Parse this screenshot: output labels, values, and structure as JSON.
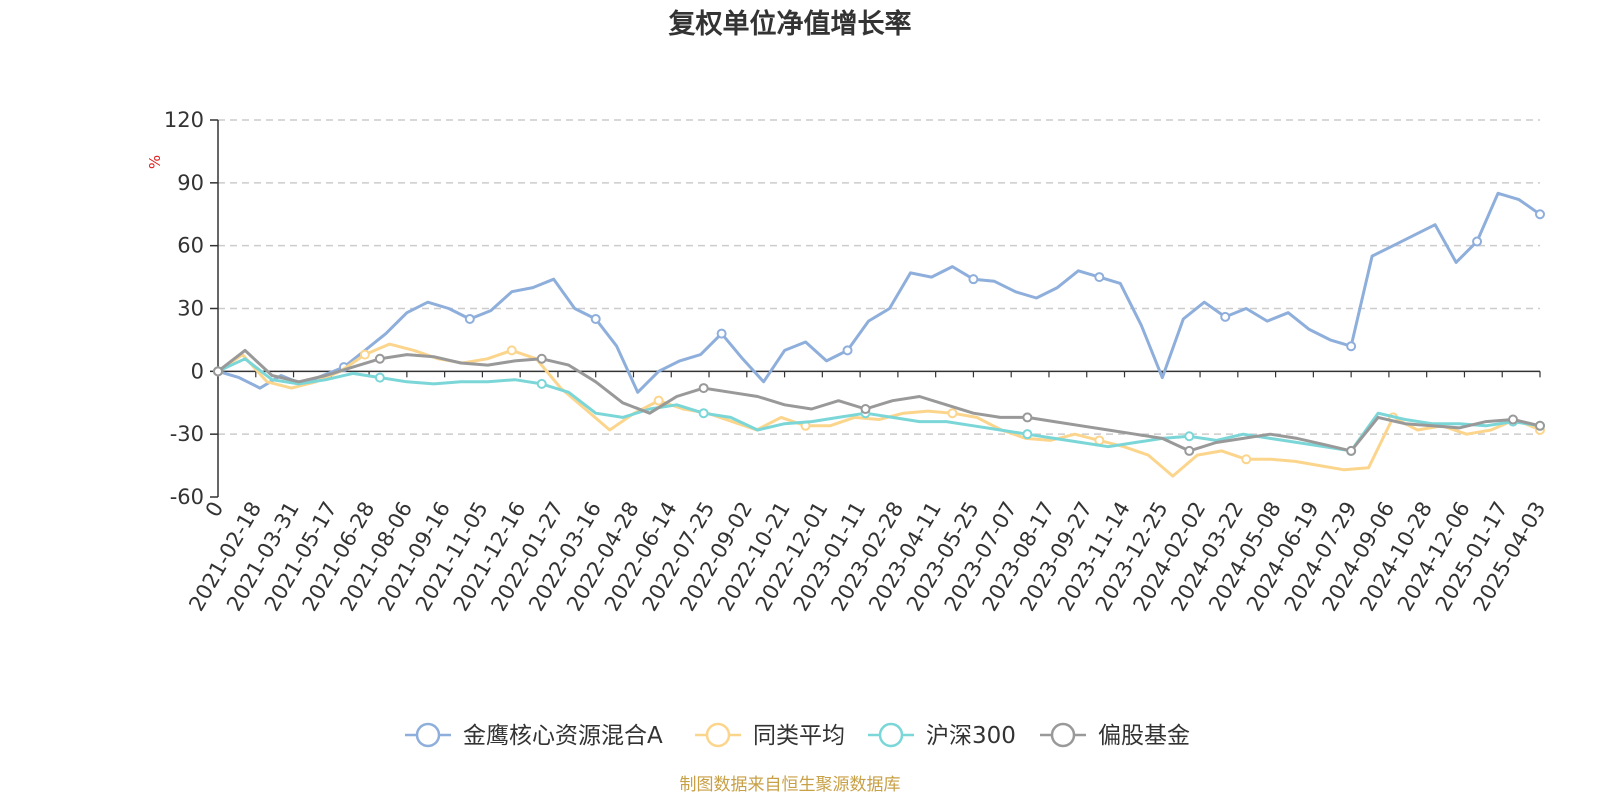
{
  "chart_data": {
    "type": "line",
    "title": "复权单位净值增长率",
    "ylabel": "%",
    "ylim": [
      -60,
      120
    ],
    "yticks": [
      -60,
      -30,
      0,
      30,
      60,
      90,
      120
    ],
    "grid": true,
    "legend_position": "bottom-center",
    "source_note": "制图数据来自恒生聚源数据库",
    "x_tick_labels": [
      "0",
      "2021-02-18",
      "2021-03-31",
      "2021-05-17",
      "2021-06-28",
      "2021-08-06",
      "2021-09-16",
      "2021-11-05",
      "2021-12-16",
      "2022-01-27",
      "2022-03-16",
      "2022-04-28",
      "2022-06-14",
      "2022-07-25",
      "2022-09-02",
      "2022-10-21",
      "2022-12-01",
      "2023-01-11",
      "2023-02-28",
      "2023-04-11",
      "2023-05-25",
      "2023-07-07",
      "2023-08-17",
      "2023-09-27",
      "2023-11-14",
      "2023-12-25",
      "2024-02-02",
      "2024-03-22",
      "2024-05-08",
      "2024-06-19",
      "2024-07-29",
      "2024-09-06",
      "2024-10-28",
      "2024-12-06",
      "2025-01-17",
      "2025-04-03"
    ],
    "series": [
      {
        "name": "金鹰核心资源混合A",
        "color": "#8eaedb",
        "values": [
          0,
          -3,
          -8,
          -2,
          -6,
          -2,
          2,
          10,
          18,
          28,
          33,
          30,
          25,
          29,
          38,
          40,
          44,
          30,
          25,
          12,
          -10,
          0,
          5,
          8,
          18,
          6,
          -5,
          10,
          14,
          5,
          10,
          24,
          30,
          47,
          45,
          50,
          44,
          43,
          38,
          35,
          40,
          48,
          45,
          42,
          22,
          -3,
          25,
          33,
          26,
          30,
          24,
          28,
          20,
          15,
          12,
          55,
          60,
          65,
          70,
          52,
          62,
          85,
          82,
          75
        ]
      },
      {
        "name": "同类平均",
        "color": "#fcd58d",
        "values": [
          0,
          8,
          -5,
          -8,
          -5,
          0,
          8,
          13,
          10,
          6,
          4,
          6,
          10,
          6,
          -8,
          -18,
          -28,
          -20,
          -14,
          -18,
          -20,
          -24,
          -28,
          -22,
          -26,
          -26,
          -22,
          -23,
          -20,
          -19,
          -20,
          -22,
          -28,
          -32,
          -33,
          -30,
          -33,
          -36,
          -40,
          -50,
          -40,
          -38,
          -42,
          -42,
          -43,
          -45,
          -47,
          -46,
          -22,
          -28,
          -26,
          -30,
          -28,
          -23,
          -28
        ]
      },
      {
        "name": "沪深300",
        "color": "#7bd6d8",
        "values": [
          0,
          6,
          -4,
          -6,
          -4,
          -1,
          -3,
          -5,
          -6,
          -5,
          -5,
          -4,
          -6,
          -10,
          -20,
          -22,
          -18,
          -16,
          -20,
          -22,
          -28,
          -25,
          -24,
          -22,
          -20,
          -22,
          -24,
          -24,
          -26,
          -28,
          -30,
          -32,
          -34,
          -36,
          -34,
          -32,
          -31,
          -33,
          -30,
          -32,
          -34,
          -36,
          -38,
          -20,
          -23,
          -25,
          -25,
          -26,
          -24,
          -26
        ]
      },
      {
        "name": "偏股基金",
        "color": "#999999",
        "values": [
          0,
          10,
          -2,
          -5,
          -2,
          2,
          6,
          8,
          7,
          4,
          3,
          5,
          6,
          3,
          -5,
          -15,
          -20,
          -12,
          -8,
          -10,
          -12,
          -16,
          -18,
          -14,
          -18,
          -14,
          -12,
          -16,
          -20,
          -22,
          -22,
          -24,
          -26,
          -28,
          -30,
          -32,
          -38,
          -34,
          -32,
          -30,
          -32,
          -35,
          -38,
          -22,
          -25,
          -26,
          -27,
          -24,
          -23,
          -26
        ]
      }
    ]
  }
}
